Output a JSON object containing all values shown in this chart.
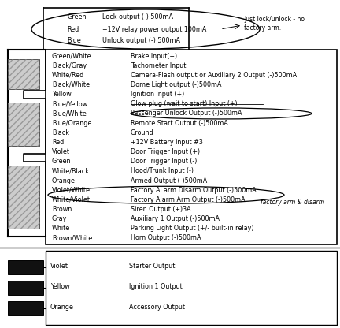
{
  "bubble_lines": [
    [
      "Green",
      "Lock output (-) 500mA"
    ],
    [
      "Red",
      "+12V relay power output 100mA"
    ],
    [
      "Blue",
      "Unlock output (-) 500mA"
    ]
  ],
  "bubble_note": "Just lock/unlock - no\nfactory arm.",
  "main_rows": [
    [
      "Green/White",
      "Brake Input(+)",
      false,
      false
    ],
    [
      "Black/Gray",
      "Tachometer Input",
      false,
      false
    ],
    [
      "White/Red",
      "Camera-Flash output or Auxiliary 2 Output (-)500mA",
      false,
      false
    ],
    [
      "Black/White",
      "Dome Light output (-)500mA",
      false,
      false
    ],
    [
      "Yellow",
      "Ignition Input (+)",
      false,
      false
    ],
    [
      "Blue/Yellow",
      "Glow plug (wait to start) Input (+)",
      true,
      false
    ],
    [
      "Blue/White",
      "Passenger Unlock Output (-)500mA",
      false,
      true
    ],
    [
      "Blue/Orange",
      "Remote Start Output (-)500mA",
      false,
      false
    ],
    [
      "Black",
      "Ground",
      false,
      false
    ],
    [
      "Red",
      "+12V Battery Input #3",
      false,
      false
    ],
    [
      "Violet",
      "Door Trigger Input (+)",
      false,
      false
    ],
    [
      "Green",
      "Door Trigger Input (-)",
      false,
      false
    ],
    [
      "White/Black",
      "Hood/Trunk Input (-)",
      false,
      false
    ],
    [
      "Orange",
      "Armed Output (-)500mA",
      false,
      false
    ],
    [
      "Violet/White",
      "Factory ALarm Disarm Output (-)500mA",
      false,
      false
    ],
    [
      "White/Violet",
      "Factory Alarm Arm Output (-)500mA",
      false,
      false
    ],
    [
      "Brown",
      "Siren Output (+)3A",
      false,
      false
    ],
    [
      "Gray",
      "Auxiliary 1 Output (-)500mA",
      false,
      false
    ],
    [
      "White",
      "Parking Light Output (+/- built-in relay)",
      false,
      false
    ],
    [
      "Brown/White",
      "Horn Output (-)500mA",
      false,
      false
    ]
  ],
  "arm_disarm_note": "factory arm & disarm",
  "bottom_rows": [
    [
      "Violet",
      "Starter Output"
    ],
    [
      "Yellow",
      "Ignition 1 Output"
    ],
    [
      "Orange",
      "Accessory Output"
    ]
  ],
  "bg_color": "#ffffff",
  "text_color": "#000000",
  "font_size": 5.8
}
